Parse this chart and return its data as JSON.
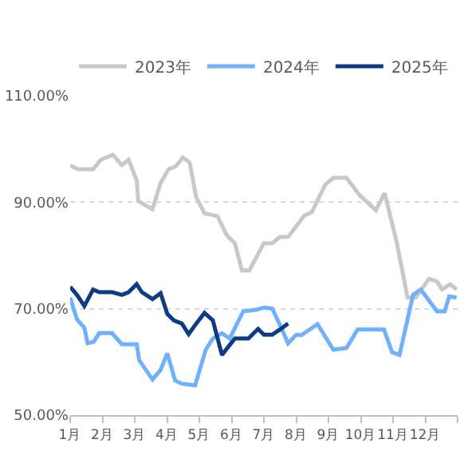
{
  "chart_data": {
    "type": "line",
    "legend": "top",
    "grid": "y",
    "line_style": "solid",
    "marker": "none",
    "xlim": [
      1,
      13
    ],
    "xticks": [
      {
        "value": 1,
        "label": "1月"
      },
      {
        "value": 2,
        "label": "2月"
      },
      {
        "value": 3,
        "label": "3月"
      },
      {
        "value": 4,
        "label": "4月"
      },
      {
        "value": 5,
        "label": "5月"
      },
      {
        "value": 6,
        "label": "6月"
      },
      {
        "value": 7,
        "label": "7月"
      },
      {
        "value": 8,
        "label": "8月"
      },
      {
        "value": 9,
        "label": "9月"
      },
      {
        "value": 10,
        "label": "10月"
      },
      {
        "value": 11,
        "label": "11月"
      },
      {
        "value": 12,
        "label": "12月"
      },
      {
        "value": 13,
        "label": null
      }
    ],
    "ylim": [
      50,
      110
    ],
    "yticks": [
      {
        "value": 50,
        "label": "50.00%"
      },
      {
        "value": 70,
        "label": "70.00%"
      },
      {
        "value": 90,
        "label": "90.00%"
      },
      {
        "value": 110,
        "label": "110.00%"
      }
    ],
    "series": [
      {
        "name": "2023年",
        "color": "#c8c8c8",
        "x": [
          1.0,
          1.25,
          1.71,
          1.95,
          2.32,
          2.6,
          2.81,
          3.06,
          3.11,
          3.55,
          3.8,
          4.05,
          4.26,
          4.49,
          4.7,
          4.9,
          5.16,
          5.56,
          5.85,
          6.1,
          6.32,
          6.55,
          7.0,
          7.26,
          7.5,
          7.75,
          8.24,
          8.49,
          8.9,
          9.15,
          9.56,
          9.97,
          10.47,
          10.74,
          11.12,
          11.45,
          11.7,
          12.11,
          12.36,
          12.52,
          12.77,
          12.97
        ],
        "values": [
          96.9,
          96.2,
          96.2,
          98.0,
          98.9,
          97.0,
          98.0,
          94.1,
          90.2,
          88.7,
          93.6,
          96.2,
          96.7,
          98.4,
          97.5,
          91.0,
          87.9,
          87.4,
          83.8,
          82.3,
          77.2,
          77.2,
          82.3,
          82.3,
          83.5,
          83.5,
          87.4,
          88.2,
          93.3,
          94.6,
          94.6,
          91.3,
          88.5,
          91.7,
          82.3,
          72.1,
          72.1,
          75.6,
          75.1,
          73.6,
          74.6,
          73.6
        ]
      },
      {
        "name": "2024年",
        "color": "#6fb1fc",
        "x": [
          1.0,
          1.21,
          1.44,
          1.54,
          1.73,
          1.9,
          2.3,
          2.6,
          3.06,
          3.14,
          3.55,
          3.8,
          4.01,
          4.25,
          4.46,
          4.87,
          5.2,
          5.42,
          5.7,
          5.94,
          6.36,
          6.77,
          7.0,
          7.26,
          7.5,
          7.75,
          8.0,
          8.16,
          8.66,
          9.15,
          9.56,
          9.9,
          10.72,
          10.97,
          11.2,
          11.62,
          11.86,
          12.36,
          12.6,
          12.74,
          12.97
        ],
        "values": [
          72.1,
          68.0,
          66.4,
          63.5,
          63.8,
          65.4,
          65.4,
          63.3,
          63.3,
          60.3,
          56.7,
          58.5,
          61.6,
          56.5,
          55.9,
          55.6,
          62.3,
          64.4,
          65.4,
          64.4,
          69.5,
          69.8,
          70.2,
          70.0,
          66.9,
          63.5,
          65.1,
          65.0,
          67.1,
          62.3,
          62.6,
          66.1,
          66.1,
          61.8,
          61.3,
          72.6,
          73.6,
          69.5,
          69.5,
          72.3,
          72.1
        ]
      },
      {
        "name": "2025年",
        "color": "#0d3b84",
        "x": [
          1.0,
          1.21,
          1.44,
          1.71,
          1.9,
          2.3,
          2.6,
          2.81,
          3.06,
          3.22,
          3.55,
          3.8,
          4.01,
          4.21,
          4.46,
          4.67,
          4.87,
          5.16,
          5.42,
          5.7,
          6.1,
          6.52,
          6.82,
          7.0,
          7.26,
          7.5,
          7.75
        ],
        "values": [
          74.1,
          72.6,
          70.5,
          73.6,
          73.1,
          73.1,
          72.6,
          73.1,
          74.6,
          73.1,
          71.8,
          72.9,
          69.0,
          67.8,
          67.2,
          65.2,
          66.9,
          69.2,
          67.8,
          61.3,
          64.4,
          64.4,
          66.2,
          65.1,
          65.1,
          66.1,
          67.2
        ]
      }
    ]
  }
}
